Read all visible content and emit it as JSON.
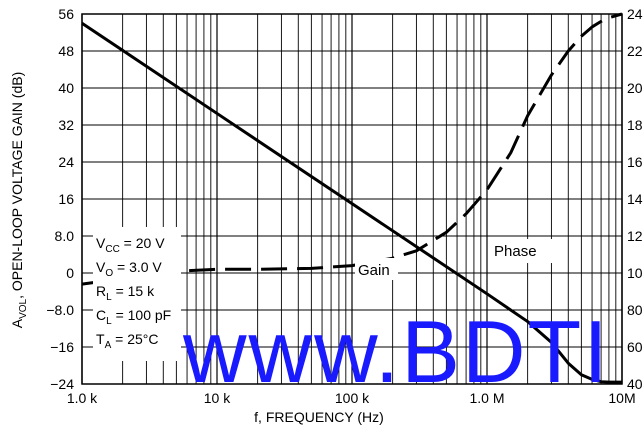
{
  "chart_data": {
    "type": "line",
    "x_scale": "log",
    "xlabel": "f, FREQUENCY (Hz)",
    "ylabel_left": {
      "prefix": "A",
      "sub": "VOL",
      "rest": ", OPEN-LOOP VOLTAGE GAIN (dB)"
    },
    "xlim": [
      1000,
      10000000
    ],
    "ylim_left": [
      -24,
      56
    ],
    "ylim_right": [
      40,
      240
    ],
    "x_ticks": [
      {
        "value": 1000,
        "label": "1.0 k"
      },
      {
        "value": 10000,
        "label": "10 k"
      },
      {
        "value": 100000,
        "label": "100 k"
      },
      {
        "value": 1000000,
        "label": "1.0 M"
      },
      {
        "value": 10000000,
        "label": "10M"
      }
    ],
    "y_ticks_left": [
      {
        "value": 56,
        "label": "56"
      },
      {
        "value": 48,
        "label": "48"
      },
      {
        "value": 40,
        "label": "40"
      },
      {
        "value": 32,
        "label": "32"
      },
      {
        "value": 24,
        "label": "24"
      },
      {
        "value": 16,
        "label": "16"
      },
      {
        "value": 8,
        "label": "8.0"
      },
      {
        "value": 0,
        "label": "0"
      },
      {
        "value": -8,
        "label": "−8.0"
      },
      {
        "value": -16,
        "label": "−16"
      },
      {
        "value": -24,
        "label": "−24"
      }
    ],
    "y_ticks_right": [
      {
        "value": 40,
        "label": "40"
      },
      {
        "value": 60,
        "label": "60"
      },
      {
        "value": 80,
        "label": "80"
      },
      {
        "value": 100,
        "label": "100"
      },
      {
        "value": 120,
        "label": "120"
      },
      {
        "value": 140,
        "label": "140"
      },
      {
        "value": 160,
        "label": "160"
      },
      {
        "value": 180,
        "label": "180"
      },
      {
        "value": 200,
        "label": "200"
      },
      {
        "value": 220,
        "label": "220"
      },
      {
        "value": 240,
        "label": "240"
      }
    ],
    "grid": true,
    "series": [
      {
        "name": "Gain",
        "axis": "left",
        "style": "solid",
        "x": [
          1000,
          10000,
          100000,
          1000000,
          2000000,
          3000000,
          4000000,
          5000000,
          6000000,
          7000000,
          8000000,
          10000000
        ],
        "y": [
          54,
          34.5,
          15,
          -4.5,
          -10.5,
          -15,
          -19.5,
          -22,
          -23,
          -23.5,
          -23.6,
          -23.6
        ]
      },
      {
        "name": "Phase",
        "axis": "right",
        "style": "dashed",
        "x": [
          1000,
          2000,
          5000,
          10000,
          20000,
          50000,
          100000,
          200000,
          300000,
          500000,
          700000,
          1000000,
          1500000,
          2000000,
          3000000,
          4000000,
          5000000,
          6000000,
          7000000,
          8000000,
          10000000
        ],
        "y": [
          94,
          97,
          101,
          102,
          102,
          102.5,
          104,
          108,
          112,
          122,
          132,
          145,
          165,
          185,
          207,
          220,
          228,
          233,
          236,
          238,
          240
        ]
      }
    ],
    "annotations": {
      "conditions": [
        {
          "main": "V",
          "sub": "CC",
          "rest": " = 20 V"
        },
        {
          "main": "V",
          "sub": "O",
          "rest": " = 3.0 V"
        },
        {
          "main": "R",
          "sub": "L",
          "rest": " = 15 k"
        },
        {
          "main": "C",
          "sub": "L",
          "rest": " = 100 pF"
        },
        {
          "main": "T",
          "sub": "A",
          "rest": " = 25°C"
        }
      ],
      "gain_label": "Gain",
      "phase_label": "Phase",
      "watermark": "www.BDTI"
    }
  }
}
